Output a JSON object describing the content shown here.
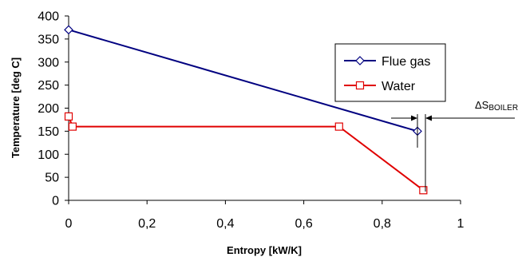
{
  "chart_data": {
    "type": "line",
    "xlabel": "Entropy [kW/K]",
    "ylabel": "Temperature [deg C]",
    "xlim": [
      0,
      1
    ],
    "ylim": [
      0,
      400
    ],
    "x_ticks": [
      "0",
      "0,2",
      "0,4",
      "0,6",
      "0,8",
      "1"
    ],
    "y_ticks": [
      "0",
      "50",
      "100",
      "150",
      "200",
      "250",
      "300",
      "350",
      "400"
    ],
    "grid": false,
    "legend_position": "right",
    "series": [
      {
        "name": "Flue gas",
        "color": "#000080",
        "marker": "diamond",
        "x": [
          0,
          0.89
        ],
        "y": [
          370,
          150
        ]
      },
      {
        "name": "Water",
        "color": "#e00000",
        "marker": "square",
        "x": [
          0,
          0.01,
          0.69,
          0.905
        ],
        "y": [
          182,
          160,
          160,
          22
        ]
      }
    ],
    "annotation": {
      "text_main": "ΔS",
      "text_sub": "BOILER"
    }
  }
}
